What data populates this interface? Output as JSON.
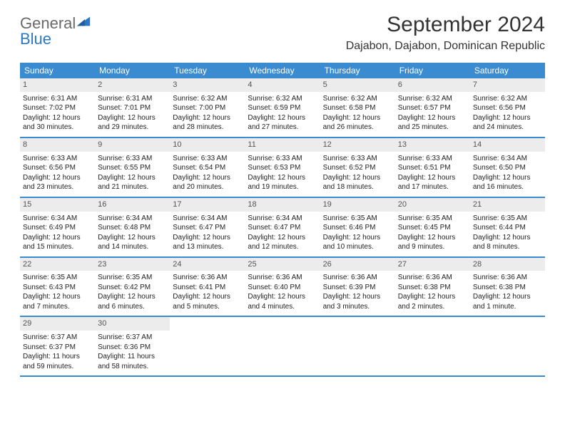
{
  "logo": {
    "text1": "General",
    "text2": "Blue"
  },
  "title": "September 2024",
  "location": "Dajabon, Dajabon, Dominican Republic",
  "colors": {
    "header_bg": "#3b8bd0",
    "header_text": "#ffffff",
    "daynum_bg": "#ececec",
    "rule": "#3b8bd0",
    "logo_gray": "#6a6a6a",
    "logo_blue": "#2b78c5"
  },
  "layout": {
    "columns": 7,
    "rows": 5
  },
  "dow": [
    "Sunday",
    "Monday",
    "Tuesday",
    "Wednesday",
    "Thursday",
    "Friday",
    "Saturday"
  ],
  "weeks": [
    [
      {
        "n": "1",
        "sr": "Sunrise: 6:31 AM",
        "ss": "Sunset: 7:02 PM",
        "dl": "Daylight: 12 hours and 30 minutes."
      },
      {
        "n": "2",
        "sr": "Sunrise: 6:31 AM",
        "ss": "Sunset: 7:01 PM",
        "dl": "Daylight: 12 hours and 29 minutes."
      },
      {
        "n": "3",
        "sr": "Sunrise: 6:32 AM",
        "ss": "Sunset: 7:00 PM",
        "dl": "Daylight: 12 hours and 28 minutes."
      },
      {
        "n": "4",
        "sr": "Sunrise: 6:32 AM",
        "ss": "Sunset: 6:59 PM",
        "dl": "Daylight: 12 hours and 27 minutes."
      },
      {
        "n": "5",
        "sr": "Sunrise: 6:32 AM",
        "ss": "Sunset: 6:58 PM",
        "dl": "Daylight: 12 hours and 26 minutes."
      },
      {
        "n": "6",
        "sr": "Sunrise: 6:32 AM",
        "ss": "Sunset: 6:57 PM",
        "dl": "Daylight: 12 hours and 25 minutes."
      },
      {
        "n": "7",
        "sr": "Sunrise: 6:32 AM",
        "ss": "Sunset: 6:56 PM",
        "dl": "Daylight: 12 hours and 24 minutes."
      }
    ],
    [
      {
        "n": "8",
        "sr": "Sunrise: 6:33 AM",
        "ss": "Sunset: 6:56 PM",
        "dl": "Daylight: 12 hours and 23 minutes."
      },
      {
        "n": "9",
        "sr": "Sunrise: 6:33 AM",
        "ss": "Sunset: 6:55 PM",
        "dl": "Daylight: 12 hours and 21 minutes."
      },
      {
        "n": "10",
        "sr": "Sunrise: 6:33 AM",
        "ss": "Sunset: 6:54 PM",
        "dl": "Daylight: 12 hours and 20 minutes."
      },
      {
        "n": "11",
        "sr": "Sunrise: 6:33 AM",
        "ss": "Sunset: 6:53 PM",
        "dl": "Daylight: 12 hours and 19 minutes."
      },
      {
        "n": "12",
        "sr": "Sunrise: 6:33 AM",
        "ss": "Sunset: 6:52 PM",
        "dl": "Daylight: 12 hours and 18 minutes."
      },
      {
        "n": "13",
        "sr": "Sunrise: 6:33 AM",
        "ss": "Sunset: 6:51 PM",
        "dl": "Daylight: 12 hours and 17 minutes."
      },
      {
        "n": "14",
        "sr": "Sunrise: 6:34 AM",
        "ss": "Sunset: 6:50 PM",
        "dl": "Daylight: 12 hours and 16 minutes."
      }
    ],
    [
      {
        "n": "15",
        "sr": "Sunrise: 6:34 AM",
        "ss": "Sunset: 6:49 PM",
        "dl": "Daylight: 12 hours and 15 minutes."
      },
      {
        "n": "16",
        "sr": "Sunrise: 6:34 AM",
        "ss": "Sunset: 6:48 PM",
        "dl": "Daylight: 12 hours and 14 minutes."
      },
      {
        "n": "17",
        "sr": "Sunrise: 6:34 AM",
        "ss": "Sunset: 6:47 PM",
        "dl": "Daylight: 12 hours and 13 minutes."
      },
      {
        "n": "18",
        "sr": "Sunrise: 6:34 AM",
        "ss": "Sunset: 6:47 PM",
        "dl": "Daylight: 12 hours and 12 minutes."
      },
      {
        "n": "19",
        "sr": "Sunrise: 6:35 AM",
        "ss": "Sunset: 6:46 PM",
        "dl": "Daylight: 12 hours and 10 minutes."
      },
      {
        "n": "20",
        "sr": "Sunrise: 6:35 AM",
        "ss": "Sunset: 6:45 PM",
        "dl": "Daylight: 12 hours and 9 minutes."
      },
      {
        "n": "21",
        "sr": "Sunrise: 6:35 AM",
        "ss": "Sunset: 6:44 PM",
        "dl": "Daylight: 12 hours and 8 minutes."
      }
    ],
    [
      {
        "n": "22",
        "sr": "Sunrise: 6:35 AM",
        "ss": "Sunset: 6:43 PM",
        "dl": "Daylight: 12 hours and 7 minutes."
      },
      {
        "n": "23",
        "sr": "Sunrise: 6:35 AM",
        "ss": "Sunset: 6:42 PM",
        "dl": "Daylight: 12 hours and 6 minutes."
      },
      {
        "n": "24",
        "sr": "Sunrise: 6:36 AM",
        "ss": "Sunset: 6:41 PM",
        "dl": "Daylight: 12 hours and 5 minutes."
      },
      {
        "n": "25",
        "sr": "Sunrise: 6:36 AM",
        "ss": "Sunset: 6:40 PM",
        "dl": "Daylight: 12 hours and 4 minutes."
      },
      {
        "n": "26",
        "sr": "Sunrise: 6:36 AM",
        "ss": "Sunset: 6:39 PM",
        "dl": "Daylight: 12 hours and 3 minutes."
      },
      {
        "n": "27",
        "sr": "Sunrise: 6:36 AM",
        "ss": "Sunset: 6:38 PM",
        "dl": "Daylight: 12 hours and 2 minutes."
      },
      {
        "n": "28",
        "sr": "Sunrise: 6:36 AM",
        "ss": "Sunset: 6:38 PM",
        "dl": "Daylight: 12 hours and 1 minute."
      }
    ],
    [
      {
        "n": "29",
        "sr": "Sunrise: 6:37 AM",
        "ss": "Sunset: 6:37 PM",
        "dl": "Daylight: 11 hours and 59 minutes."
      },
      {
        "n": "30",
        "sr": "Sunrise: 6:37 AM",
        "ss": "Sunset: 6:36 PM",
        "dl": "Daylight: 11 hours and 58 minutes."
      },
      {
        "empty": true
      },
      {
        "empty": true
      },
      {
        "empty": true
      },
      {
        "empty": true
      },
      {
        "empty": true
      }
    ]
  ]
}
